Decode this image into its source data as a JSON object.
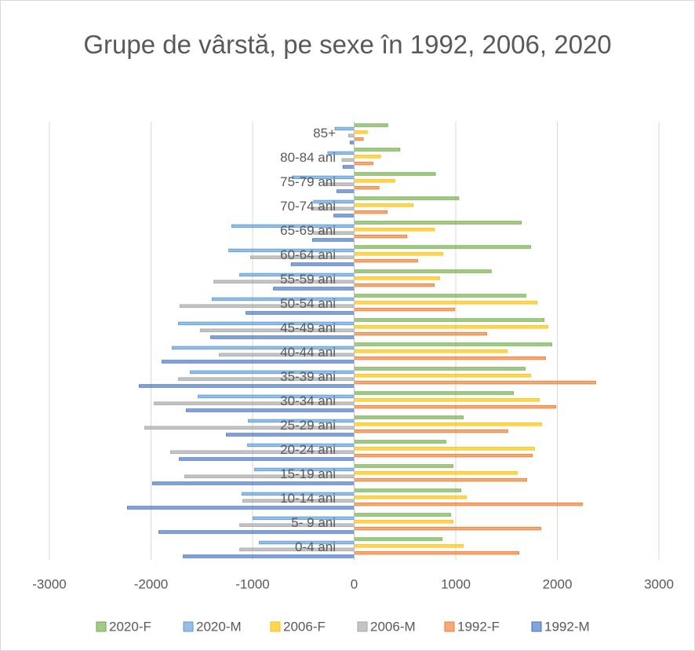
{
  "chart_data": {
    "type": "hbar",
    "title": "Grupe de vârstă, pe sexe în 1992, 2006, 2020",
    "categories": [
      "0-4 ani",
      "5- 9 ani",
      "10-14 ani",
      "15-19 ani",
      "20-24 ani",
      "25-29 ani",
      "30-34 ani",
      "35-39 ani",
      "40-44 ani",
      "45-49 ani",
      "50-54 ani",
      "55-59 ani",
      "60-64 ani",
      "65-69 ani",
      "70-74 ani",
      "75-79 ani",
      "80-84 ani",
      "85+"
    ],
    "series": [
      {
        "name": "2020-F",
        "color": "#70ad47",
        "values": [
          865,
          950,
          1050,
          973,
          903,
          1073,
          1568,
          1683,
          1946,
          1870,
          1690,
          1350,
          1737,
          1645,
          1030,
          800,
          450,
          330
        ]
      },
      {
        "name": "2020-M",
        "color": "#5b9bd5",
        "values": [
          -934,
          -996,
          -1104,
          -981,
          -1050,
          -1042,
          -1537,
          -1614,
          -1792,
          -1730,
          -1398,
          -1127,
          -1235,
          -1205,
          -400,
          -610,
          -260,
          -190
        ]
      },
      {
        "name": "2006-F",
        "color": "#ffc000",
        "values": [
          1073,
          973,
          1104,
          1606,
          1776,
          1846,
          1822,
          1737,
          1506,
          1907,
          1800,
          842,
          873,
          790,
          580,
          400,
          260,
          130
        ]
      },
      {
        "name": "2006-M",
        "color": "#a5a5a5",
        "values": [
          -1127,
          -1127,
          -1097,
          -1668,
          -1807,
          -2062,
          -1969,
          -1730,
          -1328,
          -1515,
          -1715,
          -1382,
          -1020,
          -400,
          -420,
          -300,
          -120,
          -55
        ]
      },
      {
        "name": "1992-F",
        "color": "#ed7d31",
        "values": [
          1622,
          1838,
          2247,
          1699,
          1753,
          1513,
          1985,
          2378,
          1884,
          1305,
          990,
          790,
          625,
          520,
          325,
          245,
          185,
          90
        ]
      },
      {
        "name": "1992-M",
        "color": "#4472c4",
        "values": [
          -1683,
          -1923,
          -2232,
          -1985,
          -1722,
          -1259,
          -1653,
          -2116,
          -1892,
          -1413,
          -1065,
          -795,
          -620,
          -410,
          -200,
          -170,
          -110,
          -40
        ]
      }
    ],
    "xlim": [
      -3000,
      3000
    ],
    "xticks": [
      -3000,
      -2000,
      -1000,
      0,
      1000,
      2000,
      3000
    ],
    "grid": true,
    "legend": "bottom"
  }
}
